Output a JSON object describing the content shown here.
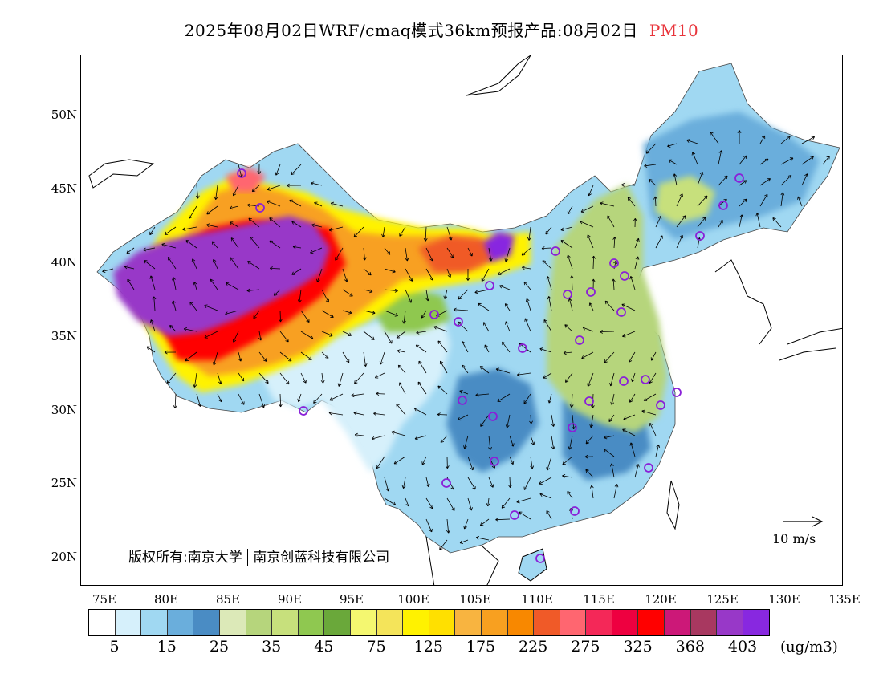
{
  "title": {
    "main": "2025年08月02日WRF/cmaq模式36km预报产品:08月02日",
    "pollutant": "PM10"
  },
  "lat_labels": [
    "50N",
    "45N",
    "40N",
    "35N",
    "30N",
    "25N",
    "20N"
  ],
  "lon_labels": [
    "75E",
    "80E",
    "85E",
    "90E",
    "95E",
    "100E",
    "105E",
    "110E",
    "115E",
    "120E",
    "125E",
    "130E",
    "135E"
  ],
  "copyright": {
    "left": "版权所有:南京大学",
    "right": "南京创蓝科技有限公司"
  },
  "reference_vector": {
    "label": "10 m/s"
  },
  "legend": {
    "colors": [
      "#ffffff",
      "#d6f0fb",
      "#a0d8f2",
      "#6aaedc",
      "#4a8cc4",
      "#dce9b8",
      "#b6d57c",
      "#c7e07c",
      "#8fc850",
      "#6aa83a",
      "#f4f770",
      "#f4e45a",
      "#fff200",
      "#ffe000",
      "#f8b440",
      "#f8a020",
      "#f88800",
      "#f05a28",
      "#ff6670",
      "#f42858",
      "#ee0040",
      "#ff0000",
      "#cc1878",
      "#a83860",
      "#9838c8",
      "#8828e0"
    ],
    "labels": [
      "5",
      "15",
      "25",
      "35",
      "45",
      "75",
      "125",
      "175",
      "225",
      "275",
      "325",
      "368",
      "403"
    ],
    "units": "(ug/m3)"
  }
}
